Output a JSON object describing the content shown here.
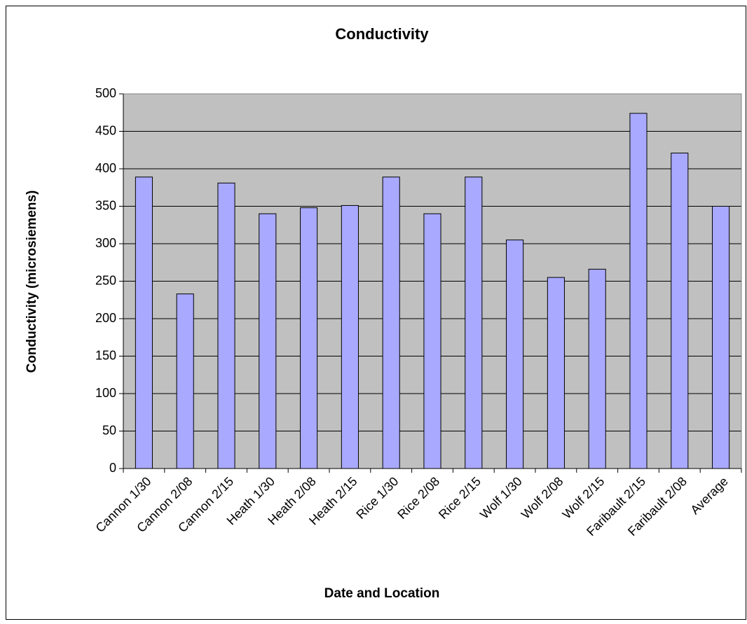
{
  "chart_data": {
    "type": "bar",
    "title": "Conductivity",
    "x_label": "Date and Location",
    "y_label": "Conductivity (microsiemens)",
    "categories": [
      "Cannon 1/30",
      "Cannon 2/08",
      "Cannon 2/15",
      "Heath 1/30",
      "Heath 2/08",
      "Heath 2/15",
      "Rice 1/30",
      "Rice 2/08",
      "Rice 2/15",
      "Wolf 1/30",
      "Wolf 2/08",
      "Wolf 2/15",
      "Faribault 2/15",
      "Faribault 2/08",
      "Average"
    ],
    "values": [
      389,
      233,
      381,
      340,
      348,
      351,
      389,
      340,
      389,
      305,
      255,
      266,
      474,
      421,
      350
    ],
    "color": "#a9a9ff",
    "ylim": [
      0,
      500
    ],
    "yticks": [
      0,
      50,
      100,
      150,
      200,
      250,
      300,
      350,
      400,
      450,
      500
    ],
    "grid": true
  }
}
